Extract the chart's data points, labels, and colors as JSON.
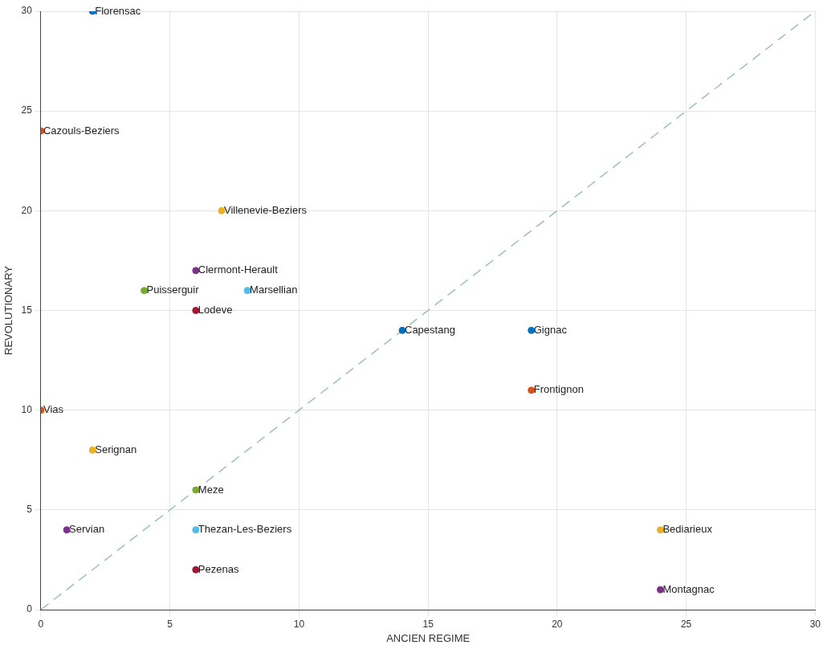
{
  "chart_data": {
    "type": "scatter",
    "xlabel": "ANCIEN REGIME",
    "ylabel": "REVOLUTIONARY",
    "xlim": [
      0,
      30
    ],
    "ylim": [
      0,
      30
    ],
    "xticks": [
      0,
      5,
      10,
      15,
      20,
      25,
      30
    ],
    "yticks": [
      0,
      5,
      10,
      15,
      20,
      25,
      30
    ],
    "grid": true,
    "legend": false,
    "marker": "circle",
    "series": [
      {
        "name": "Florensac",
        "color": "#0072bd",
        "x": [
          2
        ],
        "values": [
          30
        ]
      },
      {
        "name": "Cazouls-Beziers",
        "color": "#d95319",
        "x": [
          0
        ],
        "values": [
          24
        ]
      },
      {
        "name": "Villenevie-Beziers",
        "color": "#edb120",
        "x": [
          7
        ],
        "values": [
          20
        ]
      },
      {
        "name": "Clermont-Herault",
        "color": "#7e2f8e",
        "x": [
          6
        ],
        "values": [
          17
        ]
      },
      {
        "name": "Puisserguir",
        "color": "#77ac30",
        "x": [
          4
        ],
        "values": [
          16
        ]
      },
      {
        "name": "Marsellian",
        "color": "#4dbeee",
        "x": [
          8
        ],
        "values": [
          16
        ]
      },
      {
        "name": "Lodeve",
        "color": "#a2142f",
        "x": [
          6
        ],
        "values": [
          15
        ]
      },
      {
        "name": "Capestang",
        "color": "#0072bd",
        "x": [
          14
        ],
        "values": [
          14
        ]
      },
      {
        "name": "Gignac",
        "color": "#0072bd",
        "x": [
          19
        ],
        "values": [
          14
        ]
      },
      {
        "name": "Frontignon",
        "color": "#d95319",
        "x": [
          19
        ],
        "values": [
          11
        ]
      },
      {
        "name": "Vias",
        "color": "#d95319",
        "x": [
          0
        ],
        "values": [
          10
        ]
      },
      {
        "name": "Serignan",
        "color": "#edb120",
        "x": [
          2
        ],
        "values": [
          8
        ]
      },
      {
        "name": "Meze",
        "color": "#77ac30",
        "x": [
          6
        ],
        "values": [
          6
        ]
      },
      {
        "name": "Servian",
        "color": "#7e2f8e",
        "x": [
          1
        ],
        "values": [
          4
        ]
      },
      {
        "name": "Thezan-Les-Beziers",
        "color": "#4dbeee",
        "x": [
          6
        ],
        "values": [
          4
        ]
      },
      {
        "name": "Pezenas",
        "color": "#a2142f",
        "x": [
          6
        ],
        "values": [
          2
        ]
      },
      {
        "name": "Bediarieux",
        "color": "#edb120",
        "x": [
          24
        ],
        "values": [
          4
        ]
      },
      {
        "name": "Montagnac",
        "color": "#7e2f8e",
        "x": [
          24
        ],
        "values": [
          1
        ]
      },
      {
        "type": "line",
        "color": "#9dbfbf",
        "line_style": "dashed",
        "marker": "none",
        "x": [
          0,
          30
        ],
        "values": [
          0,
          30
        ]
      }
    ]
  }
}
